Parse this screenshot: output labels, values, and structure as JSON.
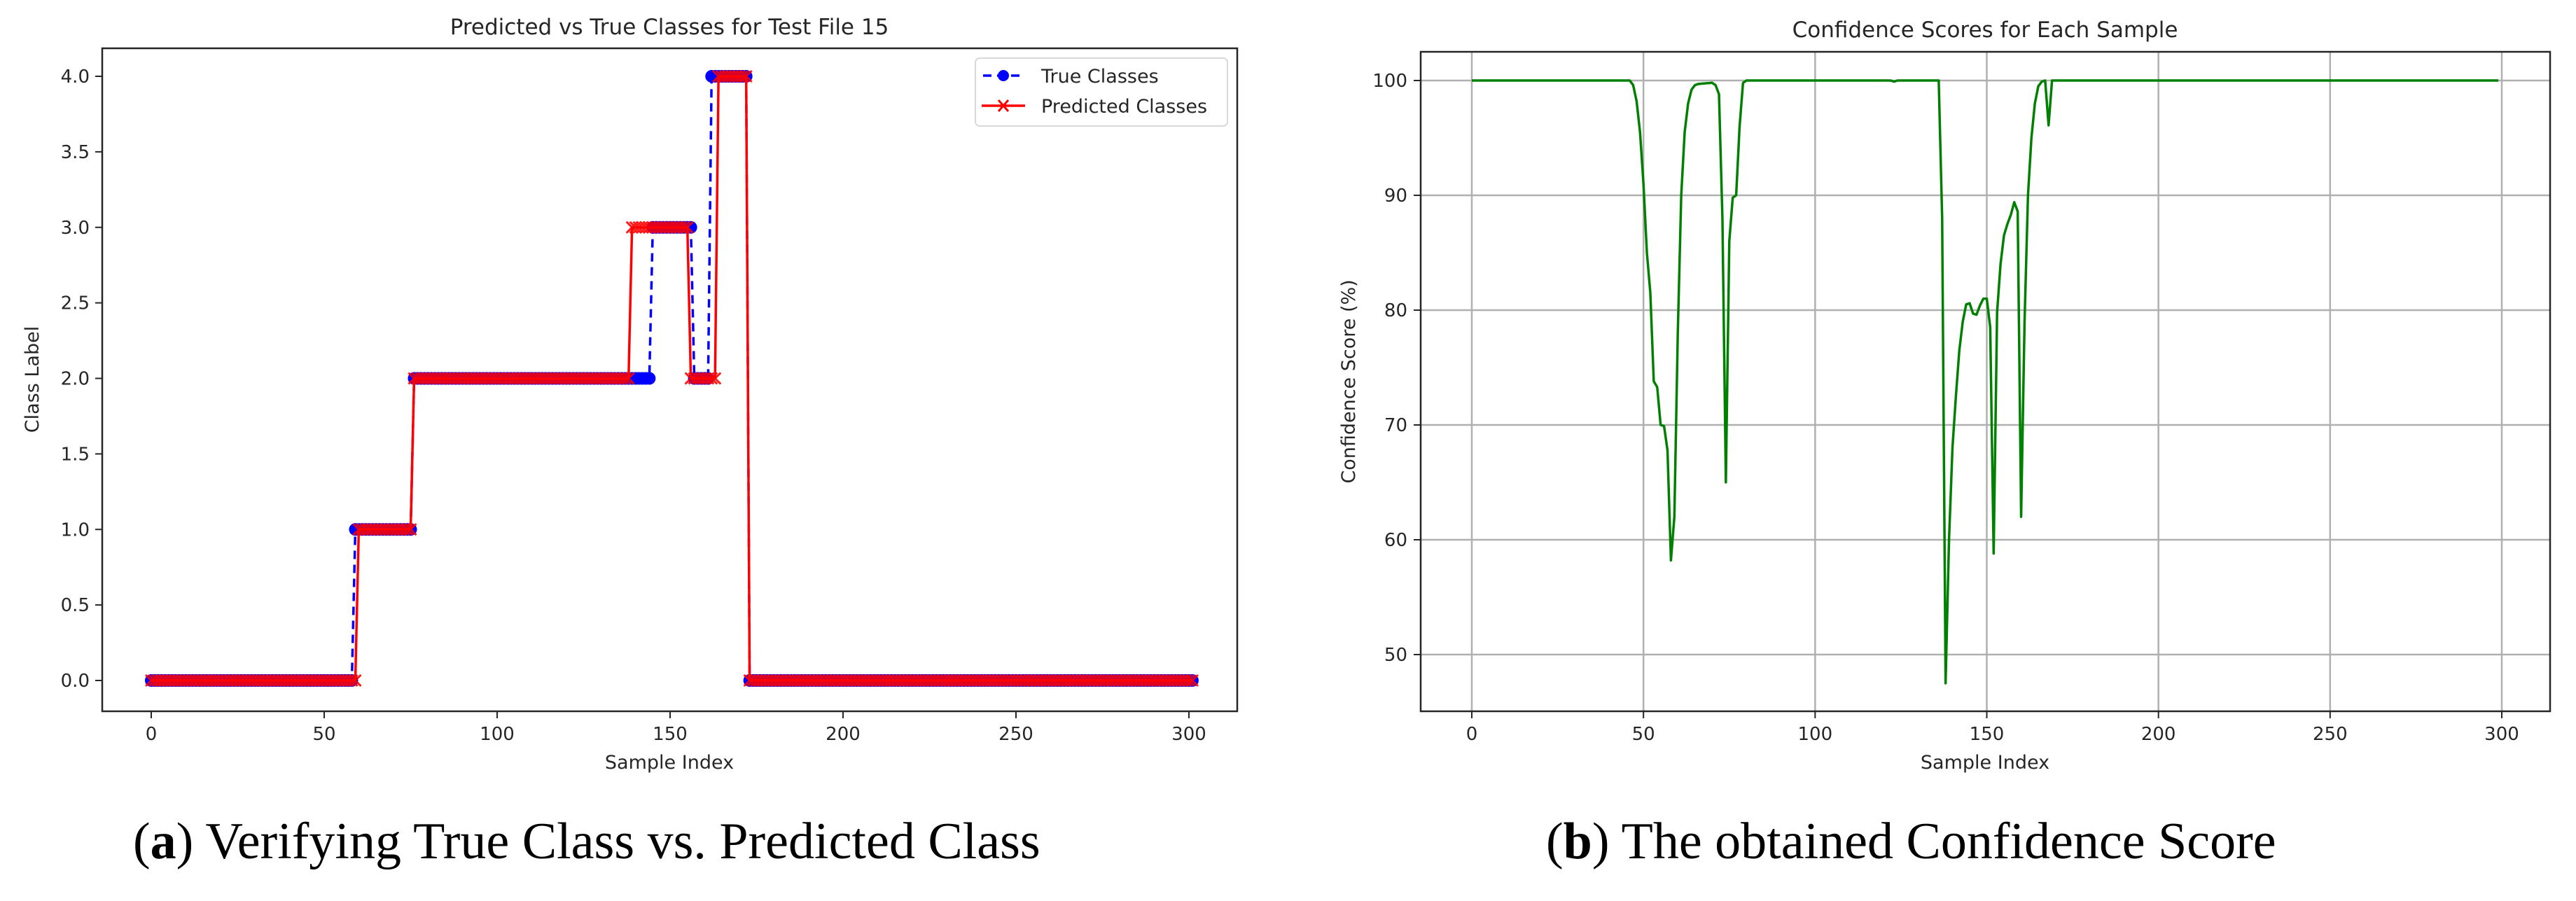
{
  "captions": {
    "a": {
      "letter": "a",
      "text": " Verifying True Class vs. Predicted Class"
    },
    "b": {
      "letter": "b",
      "text": " The obtained Confidence Score"
    }
  },
  "colors": {
    "true": "#0000ff",
    "predicted": "#ff0000",
    "confidence": "#008000",
    "grid": "#b0b0b0",
    "axis": "#262626"
  },
  "chart_data": [
    {
      "id": "a",
      "type": "line",
      "title": "Predicted vs True Classes for Test File 15",
      "xlabel": "Sample Index",
      "ylabel": "Class Label",
      "xlim": [
        -14,
        316
      ],
      "ylim": [
        -0.2,
        4.18
      ],
      "xticks": [
        0,
        50,
        100,
        150,
        200,
        250,
        300
      ],
      "yticks": [
        0.0,
        0.5,
        1.0,
        1.5,
        2.0,
        2.5,
        3.0,
        3.5,
        4.0
      ],
      "ytick_labels": [
        "0.0",
        "0.5",
        "1.0",
        "1.5",
        "2.0",
        "2.5",
        "3.0",
        "3.5",
        "4.0"
      ],
      "grid": false,
      "legend": {
        "position": "upper right",
        "entries": [
          "True Classes",
          "Predicted Classes"
        ]
      },
      "n_samples": 302,
      "series": [
        {
          "name": "True Classes",
          "style": "dashed line, circle markers",
          "segments": [
            {
              "from": 0,
              "to": 58,
              "value": 0
            },
            {
              "from": 59,
              "to": 75,
              "value": 1
            },
            {
              "from": 76,
              "to": 144,
              "value": 2
            },
            {
              "from": 145,
              "to": 156,
              "value": 3
            },
            {
              "from": 157,
              "to": 161,
              "value": 2
            },
            {
              "from": 162,
              "to": 172,
              "value": 4
            },
            {
              "from": 173,
              "to": 301,
              "value": 0
            }
          ]
        },
        {
          "name": "Predicted Classes",
          "style": "solid line, x markers",
          "segments": [
            {
              "from": 0,
              "to": 59,
              "value": 0
            },
            {
              "from": 60,
              "to": 75,
              "value": 1
            },
            {
              "from": 76,
              "to": 138,
              "value": 2
            },
            {
              "from": 139,
              "to": 155,
              "value": 3
            },
            {
              "from": 156,
              "to": 163,
              "value": 2
            },
            {
              "from": 164,
              "to": 172,
              "value": 4
            },
            {
              "from": 173,
              "to": 301,
              "value": 0
            }
          ]
        }
      ]
    },
    {
      "id": "b",
      "type": "line",
      "title": "Confidence Scores for Each Sample",
      "xlabel": "Sample Index",
      "ylabel": "Confidence Score (%)",
      "xlim": [
        -15,
        315
      ],
      "ylim": [
        45.1,
        102.5
      ],
      "xticks": [
        0,
        50,
        100,
        150,
        200,
        250,
        300
      ],
      "yticks": [
        50,
        60,
        70,
        80,
        90,
        100
      ],
      "grid": true,
      "series": [
        {
          "name": "Confidence Score",
          "points": [
            [
              0,
              100
            ],
            [
              46,
              100
            ],
            [
              47,
              99.6
            ],
            [
              48,
              98.2
            ],
            [
              49,
              95.5
            ],
            [
              50,
              91
            ],
            [
              51,
              85
            ],
            [
              52,
              81.5
            ],
            [
              53,
              73.8
            ],
            [
              54,
              73.3
            ],
            [
              55,
              70
            ],
            [
              56,
              69.9
            ],
            [
              57,
              67.8
            ],
            [
              58,
              58.2
            ],
            [
              59,
              62
            ],
            [
              60,
              78
            ],
            [
              61,
              90
            ],
            [
              62,
              95.5
            ],
            [
              63,
              98
            ],
            [
              64,
              99.2
            ],
            [
              65,
              99.6
            ],
            [
              66,
              99.7
            ],
            [
              70,
              99.8
            ],
            [
              71,
              99.6
            ],
            [
              72,
              98.8
            ],
            [
              73,
              88
            ],
            [
              74,
              65
            ],
            [
              75,
              86
            ],
            [
              76,
              89.8
            ],
            [
              77,
              90
            ],
            [
              78,
              96
            ],
            [
              79,
              99.8
            ],
            [
              80,
              100
            ],
            [
              122,
              100
            ],
            [
              123,
              99.9
            ],
            [
              124,
              100
            ],
            [
              136,
              100
            ],
            [
              137,
              88
            ],
            [
              138,
              47.5
            ],
            [
              139,
              60
            ],
            [
              140,
              68
            ],
            [
              141,
              72.5
            ],
            [
              142,
              76.5
            ],
            [
              143,
              79
            ],
            [
              144,
              80.5
            ],
            [
              145,
              80.6
            ],
            [
              146,
              79.7
            ],
            [
              147,
              79.6
            ],
            [
              148,
              80.4
            ],
            [
              149,
              81
            ],
            [
              150,
              81
            ],
            [
              151,
              78.5
            ],
            [
              152,
              58.8
            ],
            [
              153,
              79.8
            ],
            [
              154,
              84
            ],
            [
              155,
              86.5
            ],
            [
              156,
              87.5
            ],
            [
              157,
              88.3
            ],
            [
              158,
              89.4
            ],
            [
              159,
              88.6
            ],
            [
              160,
              62
            ],
            [
              161,
              79
            ],
            [
              162,
              90
            ],
            [
              163,
              95
            ],
            [
              164,
              98
            ],
            [
              165,
              99.5
            ],
            [
              166,
              99.9
            ],
            [
              167,
              100
            ],
            [
              168,
              96.1
            ],
            [
              169,
              100
            ],
            [
              299,
              100
            ]
          ]
        }
      ]
    }
  ]
}
